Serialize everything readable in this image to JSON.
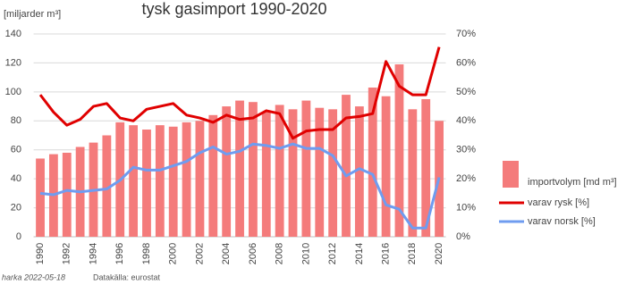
{
  "chart_data": {
    "type": "combo",
    "title": "tysk gasimport 1990-2020",
    "ylabel": "[miljarder m³]",
    "annotations": [
      "harka 2022-05-18",
      "Datakälla: eurostat"
    ],
    "categories": [
      "1990",
      null,
      "1992",
      null,
      "1994",
      null,
      "1996",
      null,
      "1998",
      null,
      "2000",
      null,
      "2002",
      null,
      "2004",
      null,
      "2006",
      null,
      "2008",
      null,
      "2010",
      null,
      "2012",
      null,
      "2014",
      null,
      "2016",
      null,
      "2018",
      null,
      "2020"
    ],
    "series": [
      {
        "name": "importvolym  [md m³]",
        "type": "bar",
        "color": "#f47b7b",
        "values": [
          54,
          57,
          58,
          62,
          65,
          70,
          79,
          77,
          74,
          77,
          76,
          79,
          80,
          84,
          90,
          94,
          93,
          86,
          91,
          88,
          94,
          89,
          88,
          98,
          90,
          103,
          97,
          119,
          88,
          95,
          80
        ]
      },
      {
        "name": "varav rysk [%]",
        "type": "line",
        "axis": "y2",
        "color": "#e00000",
        "values": [
          49,
          43,
          38.5,
          40.5,
          45,
          46,
          41,
          40,
          44,
          45,
          46,
          42,
          41,
          39.5,
          42,
          40.5,
          41,
          43.5,
          42.5,
          34,
          36.5,
          37,
          37,
          41,
          41.5,
          42.5,
          60.5,
          52,
          49,
          49,
          65.5
        ]
      },
      {
        "name": "varav norsk [%]",
        "type": "line",
        "axis": "y2",
        "color": "#6f9cf0",
        "values": [
          15,
          14.5,
          16,
          15.5,
          16,
          16.5,
          19.5,
          24,
          23,
          23,
          24.5,
          26,
          29,
          31,
          28.5,
          29.5,
          32,
          31.5,
          30.5,
          32,
          30.5,
          30.5,
          28,
          21,
          23.5,
          21.5,
          11,
          9.5,
          3,
          3,
          20.5
        ]
      }
    ],
    "ylim": [
      0,
      140
    ],
    "yticks": [
      0,
      20,
      40,
      60,
      80,
      100,
      120,
      140
    ],
    "y2lim": [
      0,
      70
    ],
    "y2ticks": [
      {
        "value": 0,
        "label": "0%"
      },
      {
        "value": 10,
        "label": "10%"
      },
      {
        "value": 20,
        "label": "20%"
      },
      {
        "value": 30,
        "label": "30%"
      },
      {
        "value": 40,
        "label": "40%"
      },
      {
        "value": 50,
        "label": "50%"
      },
      {
        "value": 60,
        "label": "60%"
      },
      {
        "value": 70,
        "label": "70%"
      }
    ],
    "grid": true
  }
}
